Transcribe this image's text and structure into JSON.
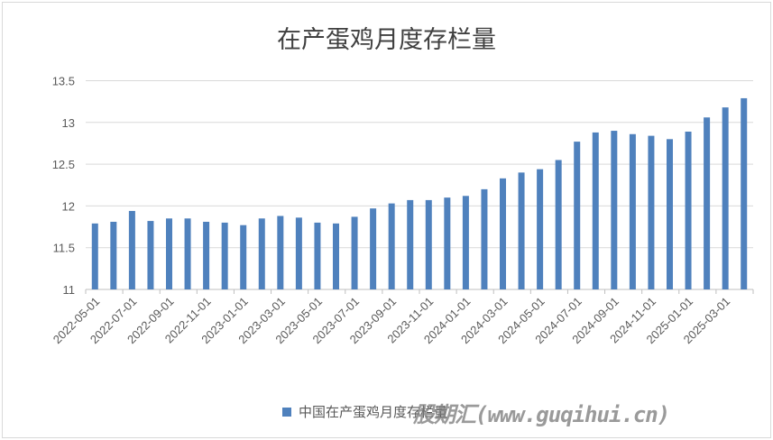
{
  "chart_data": {
    "type": "bar",
    "title": "在产蛋鸡月度存栏量",
    "xlabel": "",
    "ylabel": "",
    "ylim": [
      11,
      13.5
    ],
    "yticks": [
      "11",
      "11.5",
      "12",
      "12.5",
      "13",
      "13.5"
    ],
    "ytick_values": [
      11,
      11.5,
      12,
      12.5,
      13,
      13.5
    ],
    "grid": true,
    "legend_position": "bottom",
    "categories": [
      "2022-05-01",
      "2022-06-01",
      "2022-07-01",
      "2022-08-01",
      "2022-09-01",
      "2022-10-01",
      "2022-11-01",
      "2022-12-01",
      "2023-01-01",
      "2023-02-01",
      "2023-03-01",
      "2023-04-01",
      "2023-05-01",
      "2023-06-01",
      "2023-07-01",
      "2023-08-01",
      "2023-09-01",
      "2023-10-01",
      "2023-11-01",
      "2023-12-01",
      "2024-01-01",
      "2024-02-01",
      "2024-03-01",
      "2024-04-01",
      "2024-05-01",
      "2024-06-01",
      "2024-07-01",
      "2024-08-01",
      "2024-09-01",
      "2024-10-01",
      "2024-11-01",
      "2024-12-01",
      "2025-01-01",
      "2025-02-01",
      "2025-03-01",
      "2025-04-01"
    ],
    "xtick_labels": [
      "2022-05-01",
      "2022-07-01",
      "2022-09-01",
      "2022-11-01",
      "2023-01-01",
      "2023-03-01",
      "2023-05-01",
      "2023-07-01",
      "2023-09-01",
      "2023-11-01",
      "2024-01-01",
      "2024-03-01",
      "2024-05-01",
      "2024-07-01",
      "2024-09-01",
      "2024-11-01",
      "2025-01-01",
      "2025-03-01"
    ],
    "series": [
      {
        "name": "中国在产蛋鸡月度存栏量",
        "color": "#4f81bd",
        "values": [
          11.79,
          11.81,
          11.94,
          11.82,
          11.85,
          11.85,
          11.81,
          11.8,
          11.77,
          11.85,
          11.88,
          11.86,
          11.8,
          11.79,
          11.87,
          11.97,
          12.03,
          12.07,
          12.07,
          12.1,
          12.12,
          12.2,
          12.33,
          12.4,
          12.44,
          12.55,
          12.77,
          12.88,
          12.9,
          12.86,
          12.84,
          12.8,
          12.89,
          13.06,
          13.18,
          13.29
        ]
      }
    ]
  },
  "watermark": "股期汇(www.guqihui.cn)"
}
